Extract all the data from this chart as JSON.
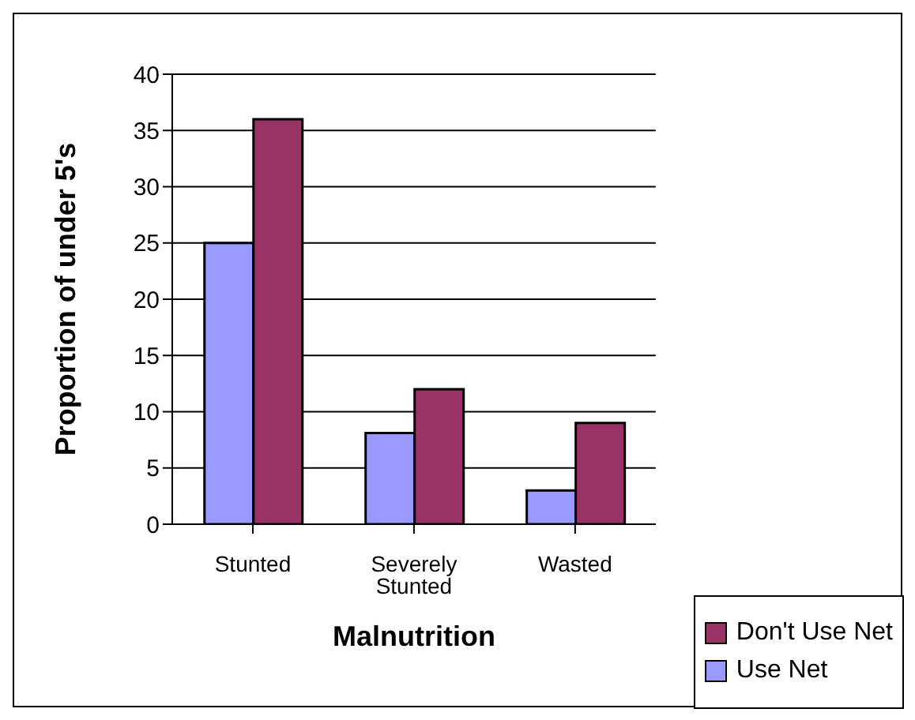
{
  "chart_data": {
    "type": "bar",
    "xlabel": "Malnutrition",
    "ylabel": "Proportion of under 5's",
    "categories": [
      "Stunted",
      "Severely Stunted",
      "Wasted"
    ],
    "series": [
      {
        "name": "Use Net",
        "color": "#9999ff",
        "values": [
          25,
          8.1,
          3
        ]
      },
      {
        "name": "Don't Use Net",
        "color": "#993366",
        "values": [
          36,
          12,
          9
        ]
      }
    ],
    "ylim": [
      0,
      40
    ],
    "yticks": [
      0,
      5,
      10,
      15,
      20,
      25,
      30,
      35,
      40
    ],
    "grid": "y",
    "legend": "bottom right"
  }
}
